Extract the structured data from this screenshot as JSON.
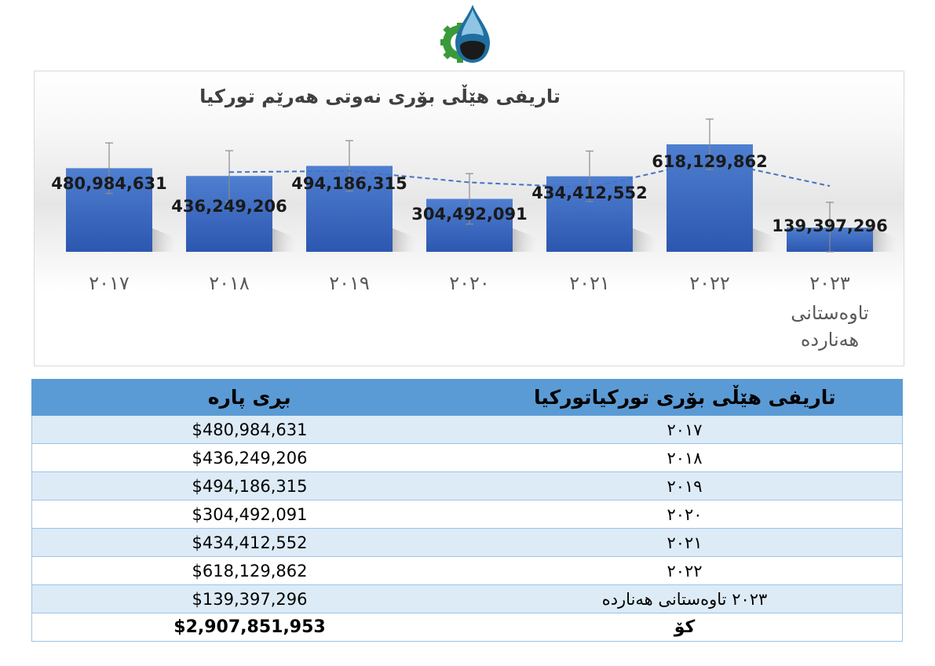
{
  "chart_data": {
    "type": "bar",
    "title": "تاریفی هێڵی بۆری نەوتی هەرێم تورکیا",
    "categories": [
      "٢٠١٧",
      "٢٠١٨",
      "٢٠١٩",
      "٢٠٢٠",
      "٢٠٢١",
      "٢٠٢٢",
      "٢٠٢٣"
    ],
    "category_sublabels": [
      "",
      "",
      "",
      "",
      "",
      "",
      "تاوەستانی هەناردە"
    ],
    "values": [
      480984631,
      436249206,
      494186315,
      304492091,
      434412552,
      618129862,
      139397296
    ],
    "data_labels": [
      "480,984,631",
      "436,249,206",
      "494,186,315",
      "304,492,091",
      "434,412,552",
      "618,129,862",
      "139,397,296"
    ],
    "trendline": "moving-average",
    "error_bars": true,
    "ylim": [
      0,
      650000000
    ],
    "grid": false,
    "legend": "none",
    "colors": {
      "bar_top": "#4f7fd0",
      "bar_bottom": "#2c57b0",
      "trend": "#4472c4",
      "error_bar": "#8c8c8c"
    }
  },
  "table": {
    "header_amount": "بڕی پارە",
    "header_label": "تاریفی هێڵی بۆری تورکیاتورکیا",
    "rows": [
      {
        "label": "٢٠١٧",
        "amount": "$480,984,631"
      },
      {
        "label": "٢٠١٨",
        "amount": "$436,249,206"
      },
      {
        "label": "٢٠١٩",
        "amount": "$494,186,315"
      },
      {
        "label": "٢٠٢٠",
        "amount": "$304,492,091"
      },
      {
        "label": "٢٠٢١",
        "amount": "$434,412,552"
      },
      {
        "label": "٢٠٢٢",
        "amount": "$618,129,862"
      },
      {
        "label": "٢٠٢٣ تاوەستانی هەناردە",
        "amount": "$139,397,296"
      }
    ],
    "total_label": "کۆ",
    "total_amount": "$2,907,851,953"
  },
  "logo": {
    "icon": "oil-drop-gear-logo",
    "colors": {
      "drop": "#1f6fa0",
      "gear": "#3a9a3a",
      "oil": "#1a1a1a"
    }
  }
}
